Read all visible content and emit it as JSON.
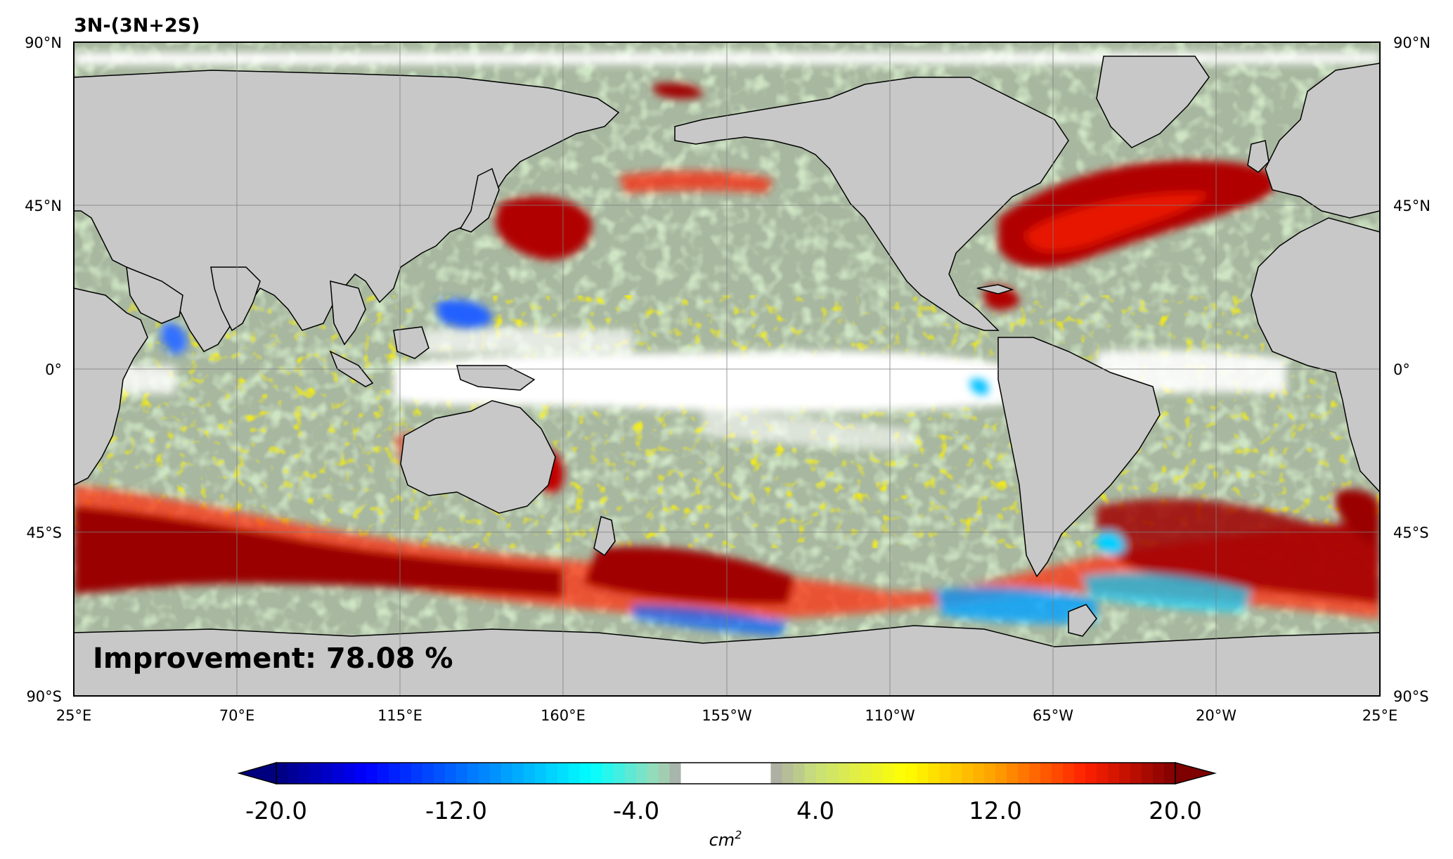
{
  "title": "3N-(3N+2S)",
  "annotation": "Improvement: 78.08 %",
  "map": {
    "lon_ticks": [
      "25°E",
      "70°E",
      "115°E",
      "160°E",
      "155°W",
      "110°W",
      "65°W",
      "20°W",
      "25°E"
    ],
    "lat_ticks": [
      "90°N",
      "45°N",
      "0°",
      "45°S",
      "90°S"
    ],
    "land_color": "#c8c8c8",
    "gridline_color": "#808080",
    "coastline_color": "#000000"
  },
  "colorbar": {
    "tick_labels": [
      "-20.0",
      "-12.0",
      "-4.0",
      "4.0",
      "12.0",
      "20.0"
    ],
    "range": [
      -20,
      20
    ],
    "center_white_range": [
      -2,
      2
    ],
    "unit_label": "cm",
    "unit_exponent": "2",
    "colors": [
      "#00007f",
      "#0000ff",
      "#0080ff",
      "#00ffff",
      "#9fd9b5",
      "#a9a9a9",
      "#ffffff",
      "#a9a9a9",
      "#c8e07a",
      "#ffff00",
      "#ff9f00",
      "#ff2000",
      "#7f0000"
    ]
  }
}
